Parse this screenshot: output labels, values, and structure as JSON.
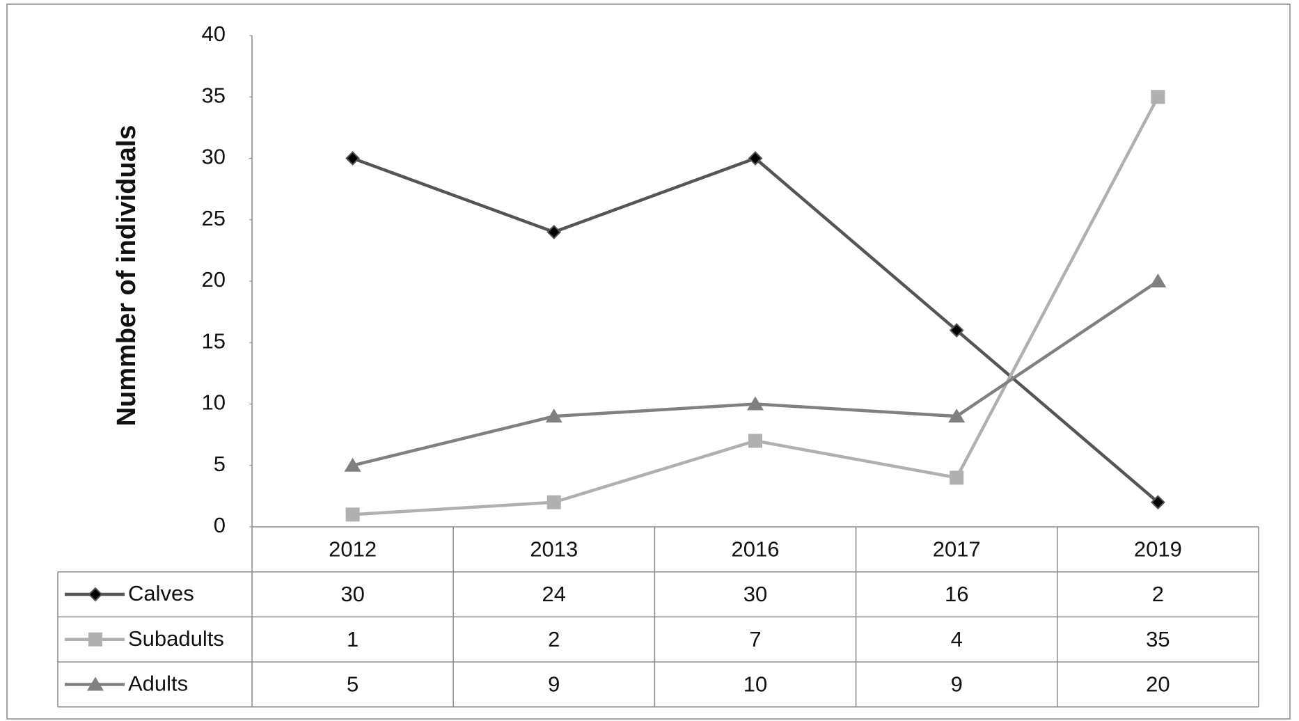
{
  "chart_data": {
    "type": "line",
    "y_label": "Nummber of individuals",
    "categories": [
      "2012",
      "2013",
      "2016",
      "2017",
      "2019"
    ],
    "series": [
      {
        "name": "Calves",
        "color": "#555555",
        "marker": "diamond",
        "values": [
          30,
          24,
          30,
          16,
          2
        ]
      },
      {
        "name": "Subadults",
        "color": "#b0b0b0",
        "marker": "square",
        "values": [
          1,
          2,
          7,
          4,
          35
        ]
      },
      {
        "name": "Adults",
        "color": "#808080",
        "marker": "triangle",
        "values": [
          5,
          9,
          10,
          9,
          20
        ]
      }
    ],
    "ylim": [
      0,
      40
    ],
    "yticks": [
      0,
      5,
      10,
      15,
      20,
      25,
      30,
      35,
      40
    ],
    "grid": false,
    "data_table": true
  }
}
